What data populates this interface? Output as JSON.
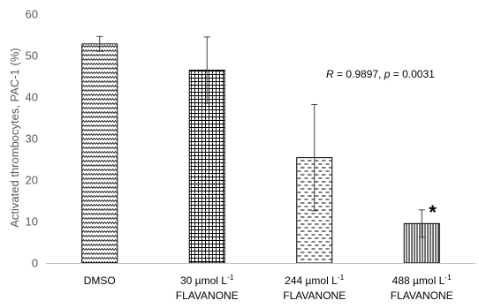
{
  "chart_data": {
    "type": "bar",
    "ylabel": "Activated thrombocytes, PAC-1 (%)",
    "ylim": [
      0,
      60
    ],
    "yticks": [
      0,
      10,
      20,
      30,
      40,
      50,
      60
    ],
    "categories": [
      {
        "line1": "DMSO",
        "line2": ""
      },
      {
        "line1_main": "30 µmol L",
        "line1_sup": "-1",
        "line2": "FLAVANONE"
      },
      {
        "line1_main": "244 µmol L",
        "line1_sup": "-1",
        "line2": "FLAVANONE"
      },
      {
        "line1_main": "488 µmol L",
        "line1_sup": "-1",
        "line2": "FLAVANONE"
      }
    ],
    "values": [
      52.8,
      46.5,
      25.4,
      9.5
    ],
    "errors": [
      1.8,
      8.0,
      12.8,
      3.3
    ],
    "patterns": [
      "zigzag",
      "grid",
      "dashes",
      "vertical-lines"
    ],
    "significance": [
      "",
      "",
      "",
      "*"
    ],
    "annotation": {
      "r_label": "R",
      "r_value": " = 0.9897, ",
      "p_label": "p",
      "p_value": " = 0.0031"
    },
    "colors": {
      "bar_stroke": "#000000",
      "axis": "#bfbfbf",
      "tick_text": "#595959",
      "error_bar": "#404040"
    }
  }
}
